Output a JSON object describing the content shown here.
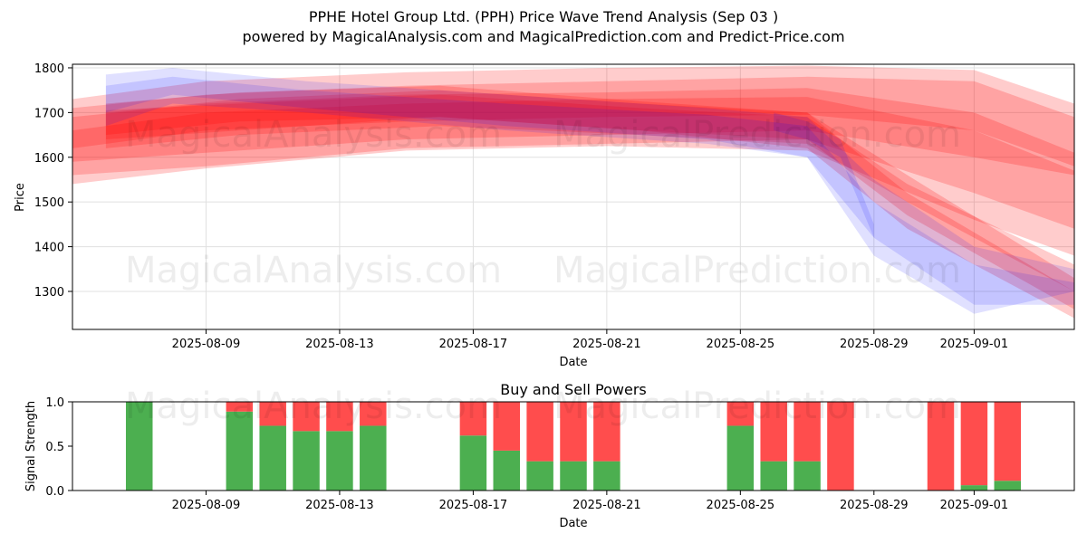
{
  "header": {
    "title": "PPHE Hotel Group Ltd. (PPH) Price Wave Trend Analysis (Sep 03 )",
    "subtitle": "powered by MagicalAnalysis.com and MagicalPrediction.com and Predict-Price.com"
  },
  "watermarks": {
    "left": "MagicalAnalysis.com",
    "right": "MagicalPrediction.com"
  },
  "colors": {
    "buy": "#4caf50",
    "sell": "#ff4d4d",
    "sell_band": "#ff0000",
    "buy_band": "#0000ff",
    "grid": "#e0e0e0"
  },
  "chart_data": [
    {
      "type": "area",
      "title": "",
      "xlabel": "Date",
      "ylabel": "Price",
      "ylim": [
        1215,
        1808
      ],
      "xlim": [
        "2025-08-05",
        "2025-09-04"
      ],
      "grid": true,
      "x_ticks": [
        "2025-08-09",
        "2025-08-13",
        "2025-08-17",
        "2025-08-21",
        "2025-08-25",
        "2025-08-29",
        "2025-09-01"
      ],
      "y_ticks": [
        1300,
        1400,
        1500,
        1600,
        1700,
        1800
      ],
      "red_bands": [
        {
          "x": [
            "2025-08-05",
            "2025-08-09",
            "2025-08-15",
            "2025-08-21",
            "2025-08-27",
            "2025-09-01",
            "2025-09-04"
          ],
          "upper": [
            1730,
            1770,
            1790,
            1800,
            1805,
            1795,
            1720
          ],
          "lower": [
            1620,
            1660,
            1680,
            1690,
            1695,
            1660,
            1580
          ]
        },
        {
          "x": [
            "2025-08-05",
            "2025-08-09",
            "2025-08-15",
            "2025-08-21",
            "2025-08-27",
            "2025-09-01",
            "2025-09-04"
          ],
          "upper": [
            1710,
            1740,
            1760,
            1770,
            1780,
            1770,
            1690
          ],
          "lower": [
            1590,
            1610,
            1640,
            1650,
            1660,
            1600,
            1560
          ]
        },
        {
          "x": [
            "2025-08-05",
            "2025-08-09",
            "2025-08-15",
            "2025-08-21",
            "2025-08-27",
            "2025-09-01",
            "2025-09-04"
          ],
          "upper": [
            1690,
            1720,
            1740,
            1745,
            1755,
            1700,
            1610
          ],
          "lower": [
            1560,
            1580,
            1620,
            1630,
            1640,
            1520,
            1440
          ]
        },
        {
          "x": [
            "2025-08-05",
            "2025-08-09",
            "2025-08-15",
            "2025-08-21",
            "2025-08-27",
            "2025-09-01",
            "2025-09-04"
          ],
          "upper": [
            1660,
            1700,
            1720,
            1730,
            1735,
            1660,
            1570
          ],
          "lower": [
            1540,
            1575,
            1615,
            1625,
            1615,
            1460,
            1380
          ]
        },
        {
          "x": [
            "2025-08-06",
            "2025-08-10",
            "2025-08-16",
            "2025-08-22",
            "2025-08-27",
            "2025-08-30",
            "2025-09-04"
          ],
          "upper": [
            1700,
            1730,
            1750,
            1720,
            1700,
            1560,
            1330
          ],
          "lower": [
            1640,
            1660,
            1690,
            1660,
            1620,
            1440,
            1240
          ]
        },
        {
          "x": [
            "2025-08-06",
            "2025-08-10",
            "2025-08-16",
            "2025-08-22",
            "2025-08-27",
            "2025-08-30",
            "2025-09-04"
          ],
          "upper": [
            1720,
            1745,
            1760,
            1725,
            1700,
            1520,
            1300
          ],
          "lower": [
            1650,
            1680,
            1690,
            1660,
            1640,
            1470,
            1260
          ]
        },
        {
          "x": [
            "2025-08-06",
            "2025-08-10",
            "2025-08-16",
            "2025-08-22",
            "2025-08-27",
            "2025-08-30",
            "2025-09-04"
          ],
          "upper": [
            1705,
            1720,
            1740,
            1710,
            1690,
            1540,
            1360
          ],
          "lower": [
            1620,
            1650,
            1670,
            1650,
            1630,
            1500,
            1300
          ]
        }
      ],
      "blue_bands": [
        {
          "x": [
            "2025-08-06",
            "2025-08-08",
            "2025-08-12",
            "2025-08-18",
            "2025-08-24",
            "2025-08-27",
            "2025-08-29",
            "2025-09-01",
            "2025-09-04"
          ],
          "upper": [
            1785,
            1800,
            1770,
            1740,
            1710,
            1690,
            1550,
            1400,
            1350
          ],
          "lower": [
            1700,
            1740,
            1710,
            1670,
            1640,
            1600,
            1380,
            1250,
            1300
          ]
        },
        {
          "x": [
            "2025-08-06",
            "2025-08-08",
            "2025-08-12",
            "2025-08-18",
            "2025-08-24",
            "2025-08-27",
            "2025-08-29",
            "2025-09-01",
            "2025-09-04"
          ],
          "upper": [
            1760,
            1780,
            1750,
            1720,
            1695,
            1670,
            1500,
            1360,
            1320
          ],
          "lower": [
            1670,
            1720,
            1700,
            1660,
            1630,
            1600,
            1420,
            1270,
            1270
          ]
        },
        {
          "x": [
            "2025-08-26",
            "2025-08-27",
            "2025-08-28",
            "2025-08-29"
          ],
          "upper": [
            1700,
            1680,
            1640,
            1450
          ],
          "lower": [
            1660,
            1640,
            1600,
            1420
          ]
        }
      ]
    },
    {
      "type": "bar",
      "title": "Buy and Sell Powers",
      "xlabel": "Date",
      "ylabel": "Signal Strength",
      "ylim": [
        0,
        1
      ],
      "xlim": [
        "2025-08-05",
        "2025-09-04"
      ],
      "grid": false,
      "x_ticks": [
        "2025-08-09",
        "2025-08-13",
        "2025-08-17",
        "2025-08-21",
        "2025-08-25",
        "2025-08-29",
        "2025-09-01"
      ],
      "y_ticks": [
        "0.0",
        "0.5",
        "1.0"
      ],
      "categories": [
        "2025-08-07",
        "2025-08-10",
        "2025-08-11",
        "2025-08-12",
        "2025-08-13",
        "2025-08-14",
        "2025-08-17",
        "2025-08-18",
        "2025-08-19",
        "2025-08-20",
        "2025-08-21",
        "2025-08-25",
        "2025-08-26",
        "2025-08-27",
        "2025-08-28",
        "2025-08-31",
        "2025-09-01",
        "2025-09-02"
      ],
      "series": [
        {
          "values": [
            1.0,
            0.89,
            0.73,
            0.67,
            0.67,
            0.73,
            0.62,
            0.45,
            0.33,
            0.33,
            0.33,
            0.73,
            0.33,
            0.33,
            0.0,
            0.0,
            0.06,
            0.11
          ]
        },
        {
          "values": [
            0.0,
            0.11,
            0.27,
            0.33,
            0.33,
            0.27,
            0.38,
            0.55,
            0.67,
            0.67,
            0.67,
            0.27,
            0.67,
            0.67,
            1.0,
            1.0,
            0.94,
            0.89
          ]
        }
      ]
    }
  ]
}
